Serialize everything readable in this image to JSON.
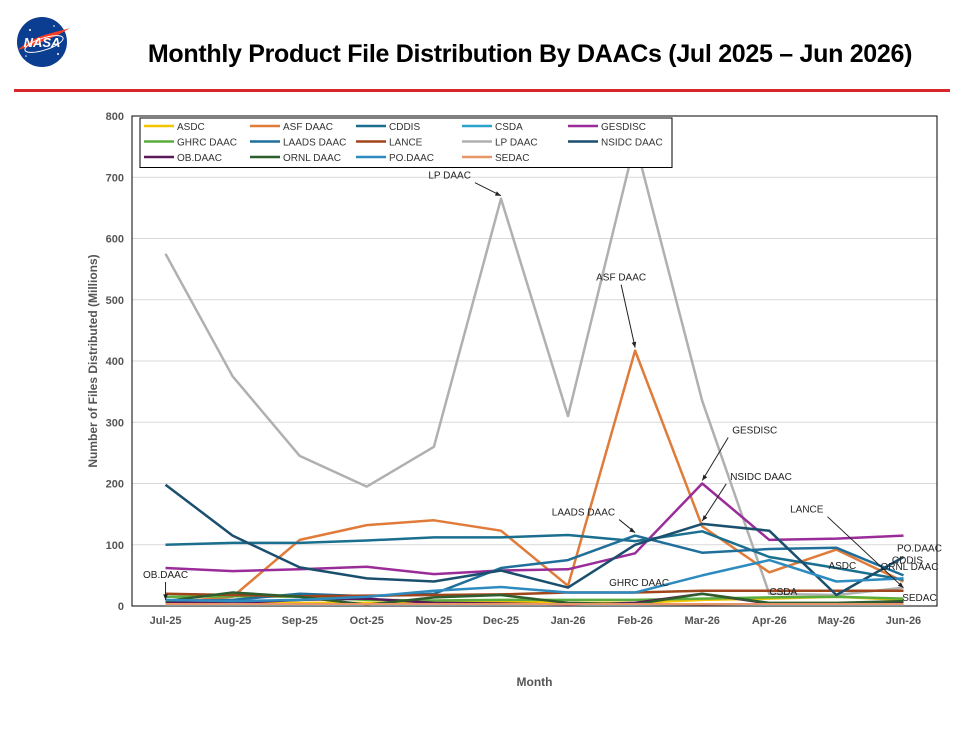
{
  "header": {
    "logo_text": "NASA",
    "title": "Monthly Product File Distribution By DAACs (Jul 2025 – Jun 2026)"
  },
  "colors": {
    "accent_rule": "#d9262b",
    "nasa_blue": "#0b3d91",
    "nasa_red": "#fc3d21"
  },
  "chart_data": {
    "type": "line",
    "title": "Monthly Product File Distribution By DAACs (Jul 2025 – Jun 2026)",
    "xlabel": "Month",
    "ylabel": "Number of Files Distributed (Millions)",
    "ylim": [
      0,
      800
    ],
    "yticks": [
      0,
      100,
      200,
      300,
      400,
      500,
      600,
      700,
      800
    ],
    "grid": true,
    "legend_position": "top-left",
    "categories": [
      "Jul-25",
      "Aug-25",
      "Sep-25",
      "Oct-25",
      "Nov-25",
      "Dec-25",
      "Jan-26",
      "Feb-26",
      "Mar-26",
      "Apr-26",
      "May-26",
      "Jun-26"
    ],
    "series": [
      {
        "name": "ASDC",
        "color": "#f2c500",
        "values": [
          3,
          4,
          5,
          5,
          6,
          8,
          5,
          5,
          10,
          12,
          15,
          10
        ]
      },
      {
        "name": "ASF DAAC",
        "color": "#e07b39",
        "values": [
          5,
          15,
          108,
          132,
          140,
          123,
          33,
          417,
          130,
          55,
          92,
          40
        ]
      },
      {
        "name": "CDDIS",
        "color": "#1a6e8e",
        "values": [
          100,
          103,
          103,
          107,
          112,
          112,
          116,
          106,
          122,
          80,
          62,
          43
        ]
      },
      {
        "name": "CSDA",
        "color": "#29a3cc",
        "values": [
          2,
          2,
          2,
          2,
          2,
          2,
          2,
          2,
          3,
          2,
          2,
          2
        ]
      },
      {
        "name": "GESDISC",
        "color": "#9a2c9a",
        "values": [
          62,
          57,
          60,
          64,
          52,
          58,
          60,
          86,
          200,
          108,
          110,
          115
        ]
      },
      {
        "name": "GHRC DAAC",
        "color": "#5aad3c",
        "values": [
          15,
          16,
          15,
          10,
          9,
          10,
          10,
          10,
          12,
          14,
          15,
          12
        ]
      },
      {
        "name": "LAADS DAAC",
        "color": "#1f6f9a",
        "values": [
          8,
          10,
          20,
          16,
          20,
          62,
          75,
          115,
          87,
          93,
          95,
          50
        ]
      },
      {
        "name": "LANCE",
        "color": "#a0441b",
        "values": [
          20,
          18,
          16,
          17,
          18,
          19,
          22,
          22,
          25,
          25,
          25,
          25
        ]
      },
      {
        "name": "LP DAAC",
        "color": "#b0b0b0",
        "values": [
          575,
          375,
          245,
          195,
          260,
          665,
          310,
          758,
          335,
          20,
          18,
          30
        ]
      },
      {
        "name": "NSIDC DAAC",
        "color": "#1a4f6e",
        "values": [
          198,
          115,
          63,
          45,
          40,
          58,
          30,
          100,
          134,
          123,
          18,
          80
        ]
      },
      {
        "name": "OB.DAAC",
        "color": "#5a1a5a",
        "values": [
          5,
          5,
          10,
          12,
          5,
          4,
          2,
          5,
          20,
          4,
          3,
          5
        ]
      },
      {
        "name": "ORNL DAAC",
        "color": "#2e5e2e",
        "values": [
          8,
          22,
          15,
          2,
          14,
          18,
          5,
          3,
          20,
          5,
          5,
          8
        ]
      },
      {
        "name": "PO.DAAC",
        "color": "#2e8bc0",
        "values": [
          10,
          8,
          10,
          15,
          25,
          31,
          22,
          22,
          50,
          75,
          40,
          45
        ]
      },
      {
        "name": "SEDAC",
        "color": "#e8956a",
        "values": [
          3,
          3,
          3,
          3,
          3,
          3,
          3,
          3,
          3,
          3,
          3,
          3
        ]
      }
    ],
    "annotations": [
      {
        "text": "LP DAAC",
        "series": "LP DAAC",
        "month": "Dec-25"
      },
      {
        "text": "ASF DAAC",
        "series": "ASF DAAC",
        "month": "Feb-26"
      },
      {
        "text": "GESDISC",
        "series": "GESDISC",
        "month": "Mar-26"
      },
      {
        "text": "NSIDC DAAC",
        "series": "NSIDC DAAC",
        "month": "Mar-26"
      },
      {
        "text": "LAADS DAAC",
        "series": "LAADS DAAC",
        "month": "Feb-26"
      },
      {
        "text": "LANCE",
        "series": "LANCE",
        "month": "Jun-26"
      },
      {
        "text": "OB.DAAC",
        "series": "OB.DAAC",
        "month": "Jul-25"
      },
      {
        "text": "GHRC DAAC",
        "series": "GHRC DAAC",
        "month": "Feb-26"
      },
      {
        "text": "CSDA",
        "series": "CSDA",
        "month": "Apr-26"
      },
      {
        "text": "ASDC",
        "series": "ASDC",
        "month": "May-26"
      },
      {
        "text": "PO.DAAC",
        "series": "PO.DAAC",
        "month": "Jun-26"
      },
      {
        "text": "CDDIS",
        "series": "CDDIS",
        "month": "Jun-26"
      },
      {
        "text": "ORNL DAAC",
        "series": "ORNL DAAC",
        "month": "Jun-26"
      },
      {
        "text": "SEDAC",
        "series": "SEDAC",
        "month": "Jun-26"
      }
    ]
  }
}
